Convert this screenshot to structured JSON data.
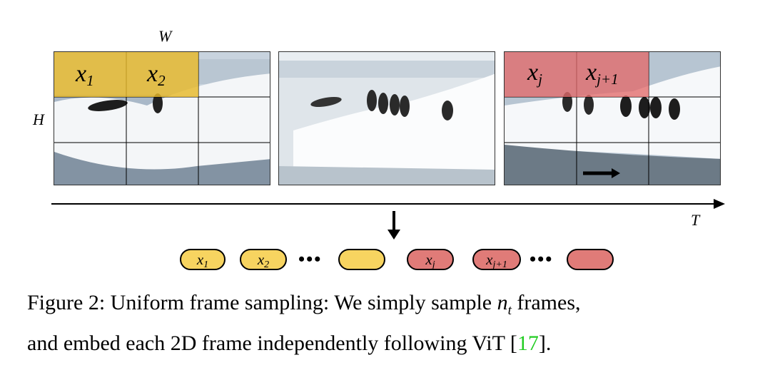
{
  "figure": {
    "width_label": "W",
    "height_label": "H",
    "time_label": "T",
    "frames": [
      {
        "name": "frame-1",
        "patches": [
          {
            "base": "x",
            "sub": "1"
          },
          {
            "base": "x",
            "sub": "2"
          }
        ]
      },
      {
        "name": "frame-2",
        "patches": []
      },
      {
        "name": "frame-3",
        "patches": [
          {
            "base": "x",
            "sub": "j"
          },
          {
            "base": "x",
            "sub": "j+1"
          }
        ]
      }
    ],
    "tokens": [
      {
        "base": "x",
        "sub": "1",
        "color": "yellow"
      },
      {
        "base": "x",
        "sub": "2",
        "color": "yellow"
      },
      {
        "base": "",
        "sub": "",
        "color": "yellow"
      },
      {
        "base": "x",
        "sub": "j",
        "color": "red"
      },
      {
        "base": "x",
        "sub": "j+1",
        "color": "red"
      },
      {
        "base": "",
        "sub": "",
        "color": "red"
      }
    ],
    "ellipsis": "•••",
    "colors": {
      "yellow_highlight": "#e6b82a",
      "red_highlight": "#e36a6a",
      "citation": "#22cc22"
    }
  },
  "caption": {
    "prefix": "Figure 2: Uniform frame sampling: We simply sample ",
    "var_base": "n",
    "var_sub": "t",
    "middle": " frames,",
    "line2": "and embed each 2D frame independently following ViT [",
    "citation": "17",
    "suffix": "]."
  }
}
